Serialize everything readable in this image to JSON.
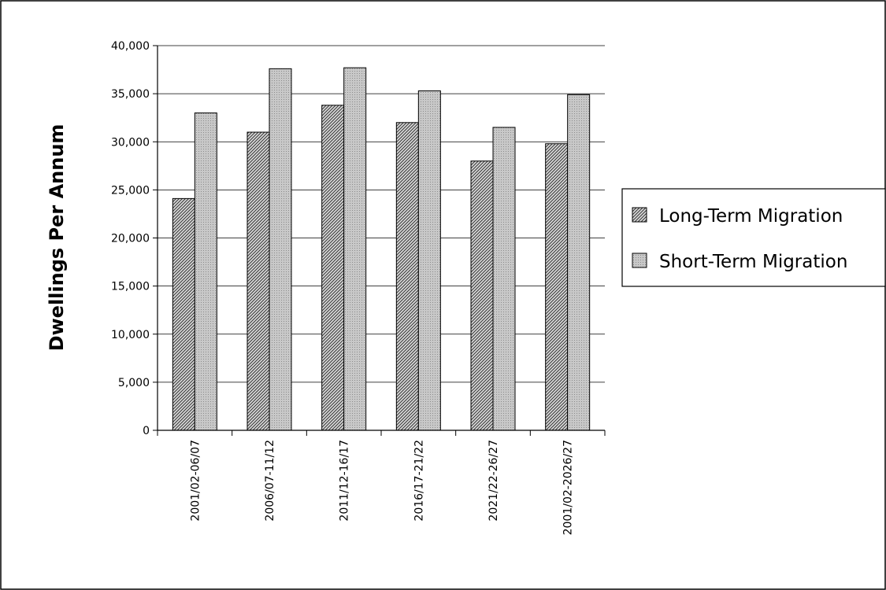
{
  "chart_data": {
    "type": "bar",
    "title": "",
    "xlabel": "",
    "ylabel": "Dwellings Per Annum",
    "categories": [
      "2001/02-06/07",
      "2006/07-11/12",
      "2011/12-16/17",
      "2016/17-21/22",
      "2021/22-26/27",
      "2001/02-2026/27"
    ],
    "series": [
      {
        "name": "Long-Term Migration",
        "values": [
          24100,
          31000,
          33800,
          32000,
          28000,
          29800
        ]
      },
      {
        "name": "Short-Term Migration",
        "values": [
          33000,
          37600,
          37700,
          35300,
          31500,
          34900
        ]
      }
    ],
    "ylim": [
      0,
      40000
    ],
    "yticks": [
      0,
      5000,
      10000,
      15000,
      20000,
      25000,
      30000,
      35000,
      40000
    ],
    "ytick_labels": [
      "0",
      "5,000",
      "10,000",
      "15,000",
      "20,000",
      "25,000",
      "30,000",
      "35,000",
      "40,000"
    ],
    "grid": "horizontal",
    "legend_position": "right"
  }
}
